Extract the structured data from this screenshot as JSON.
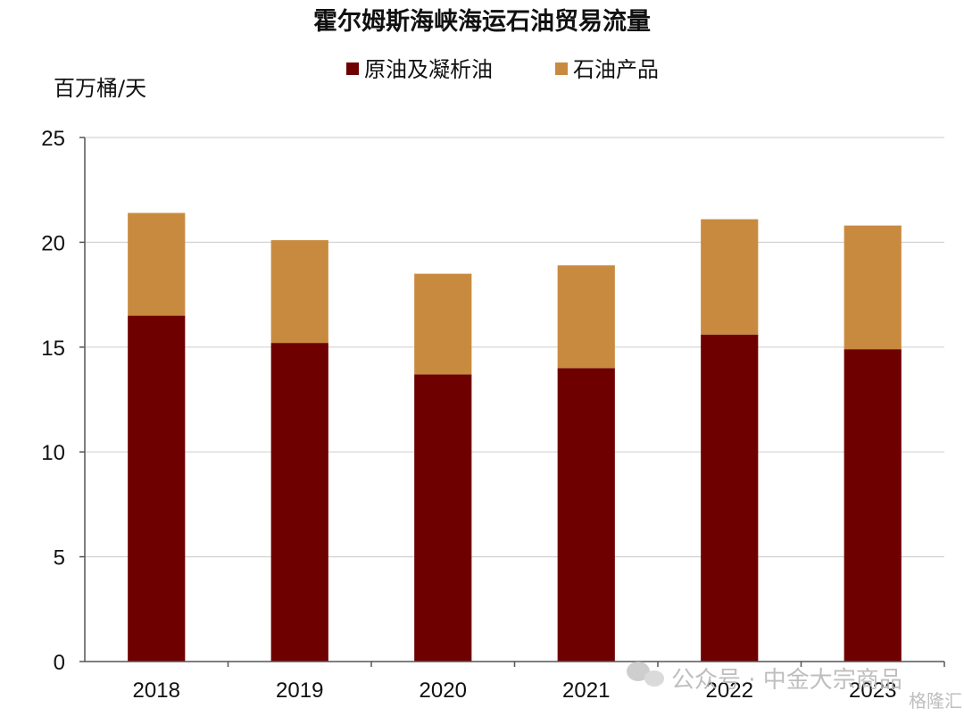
{
  "chart_data": {
    "type": "bar",
    "stacked": true,
    "title": "霍尔姆斯海峡海运石油贸易流量",
    "ylabel": "百万桶/天",
    "xlabel": "",
    "ylim": [
      0,
      25
    ],
    "yticks": [
      0,
      5,
      10,
      15,
      20,
      25
    ],
    "grid": true,
    "legend_position": "top-center",
    "categories": [
      "2018",
      "2019",
      "2020",
      "2021",
      "2022",
      "2023"
    ],
    "series": [
      {
        "name": "原油及凝析油",
        "color": "#6e0000",
        "values": [
          16.5,
          15.2,
          13.7,
          14.0,
          15.6,
          14.9
        ]
      },
      {
        "name": "石油产品",
        "color": "#c88a3f",
        "values": [
          4.9,
          4.9,
          4.8,
          4.9,
          5.5,
          5.9
        ]
      }
    ]
  },
  "watermark": {
    "text": "公众号 · 中金大宗商品",
    "logo_text": "格隆汇",
    "icon": "wechat-icon"
  }
}
